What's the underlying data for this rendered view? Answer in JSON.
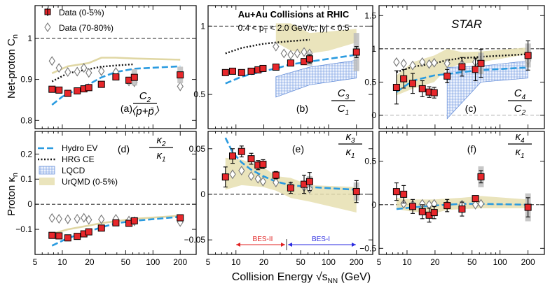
{
  "figure": {
    "xtitle_main": "Collision Energy ",
    "xtitle_sqrt": "√s",
    "xtitle_sub": "NN",
    "xtitle_unit": " (GeV)",
    "ylabel_top": "Net-proton C",
    "ylabel_top_sub": "n",
    "ylabel_bottom": "Proton κ",
    "ylabel_bottom_sub": "n",
    "header_title": "Au+Au Collisions at RHIC",
    "header_cut_a": "0.4 < p",
    "header_cut_sub": "T",
    "header_cut_b": " < 2.0 GeV/c, |y| < 0.5",
    "star_label": "STAR",
    "bes2_label": "BES-II",
    "bes1_label": "BES-I",
    "legend": {
      "data_central": "Data (0-5%)",
      "data_peripheral": "Data (70-80%)",
      "hydro": "Hydro EV",
      "hrg": "HRG CE",
      "lqcd": "LQCD",
      "urqmd": "UrQMD (0-5%)"
    },
    "panel_tags": [
      "(a)",
      "(b)",
      "(c)",
      "(d)",
      "(e)",
      "(f)"
    ],
    "ratios": [
      {
        "num": "C",
        "num_sub": "2",
        "den": "〈p+p̄〉",
        "den_sub": ""
      },
      {
        "num": "C",
        "num_sub": "3",
        "den": "C",
        "den_sub": "1"
      },
      {
        "num": "C",
        "num_sub": "4",
        "den": "C",
        "den_sub": "2"
      },
      {
        "num": "κ",
        "num_sub": "2",
        "den": "κ",
        "den_sub": "1"
      },
      {
        "num": "κ",
        "num_sub": "3",
        "den": "κ",
        "den_sub": "1"
      },
      {
        "num": "κ",
        "num_sub": "4",
        "den": "κ",
        "den_sub": "1"
      }
    ]
  },
  "chart_data": [
    {
      "type": "scatter",
      "panel": "a",
      "xscale": "log",
      "xlim": [
        5,
        300
      ],
      "ylim": [
        0.78,
        1.08
      ],
      "yticks": [
        0.8,
        0.9,
        1
      ],
      "ytick_labels": [
        "0.8",
        "0.9",
        "1"
      ],
      "xticks": [
        5,
        10,
        20,
        50,
        100,
        200
      ],
      "xtick_labels": [
        "5",
        "10",
        "20",
        "50",
        "100",
        "200"
      ],
      "ref_line": 1,
      "series": [
        {
          "name": "Data (0-5%)",
          "x": [
            7.7,
            9.2,
            11.5,
            14.6,
            17.3,
            19.6,
            27,
            39,
            54.4,
            62.4,
            200
          ],
          "y": [
            0.876,
            0.874,
            0.866,
            0.872,
            0.877,
            0.88,
            0.888,
            0.906,
            0.898,
            0.905,
            0.911
          ],
          "err": [
            0.004,
            0.004,
            0.004,
            0.004,
            0.005,
            0.004,
            0.004,
            0.004,
            0.004,
            0.004,
            0.005
          ],
          "syst": [
            0,
            0,
            0,
            0,
            0,
            0,
            0,
            0,
            0,
            0.02,
            0.02
          ]
        },
        {
          "name": "Data (70-80%)",
          "x": [
            7.7,
            9.2,
            11.5,
            14.6,
            17.3,
            19.6,
            27,
            39,
            54.4,
            62.4,
            200
          ],
          "y": [
            0.945,
            0.928,
            0.918,
            0.919,
            0.928,
            0.916,
            0.92,
            0.918,
            0.895,
            0.893,
            0.883
          ]
        },
        {
          "name": "Hydro EV",
          "x": [
            7.7,
            10,
            14.5,
            19.6,
            27,
            39,
            62.4,
            200
          ],
          "y": [
            0.838,
            0.858,
            0.875,
            0.888,
            0.905,
            0.918,
            0.926,
            0.932
          ]
        },
        {
          "name": "HRG CE",
          "x": [
            7.7,
            11.5,
            19.6,
            27,
            39,
            62.4
          ],
          "y": [
            0.895,
            0.915,
            0.925,
            0.931,
            0.934,
            0.937
          ]
        },
        {
          "name": "UrQMD (0-5%)",
          "x": [
            7.7,
            11.5,
            19.6,
            27,
            39,
            62.4,
            200
          ],
          "y": [
            0.915,
            0.932,
            0.94,
            0.953,
            0.953,
            0.951,
            0.948
          ]
        }
      ]
    },
    {
      "type": "scatter",
      "panel": "b",
      "xscale": "log",
      "xlim": [
        5,
        300
      ],
      "ylim": [
        0.25,
        1.15
      ],
      "yticks": [
        0.5,
        1
      ],
      "ytick_labels": [
        "0.5",
        "1"
      ],
      "ref_line": 1,
      "xticks": [
        5,
        10,
        20,
        50,
        100,
        200
      ],
      "xtick_labels": [
        "5",
        "10",
        "20",
        "50",
        "100",
        "200"
      ],
      "series": [
        {
          "name": "Data (0-5%)",
          "x": [
            7.7,
            9.2,
            11.5,
            14.6,
            17.3,
            19.6,
            27,
            39,
            54.4,
            62.4,
            200
          ],
          "y": [
            0.66,
            0.67,
            0.66,
            0.67,
            0.68,
            0.69,
            0.7,
            0.73,
            0.74,
            0.76,
            0.81
          ],
          "err": [
            0.02,
            0.02,
            0.02,
            0.02,
            0.02,
            0.02,
            0.02,
            0.02,
            0.02,
            0.03,
            0.04
          ],
          "syst": [
            0,
            0,
            0,
            0,
            0,
            0,
            0,
            0,
            0,
            0.05,
            0.14
          ]
        },
        {
          "name": "Data (70-80%)",
          "x": [
            27,
            33,
            39,
            46,
            54.4,
            62.4
          ],
          "y": [
            0.85,
            0.8,
            0.79,
            0.8,
            0.81,
            0.8
          ]
        },
        {
          "name": "Hydro EV",
          "x": [
            7.7,
            11.5,
            19.6,
            27,
            39,
            62.4,
            200
          ],
          "y": [
            0.58,
            0.63,
            0.67,
            0.69,
            0.72,
            0.74,
            0.79
          ]
        },
        {
          "name": "HRG CE",
          "x": [
            7.7,
            11.5,
            19.6,
            27,
            39,
            62.4
          ],
          "y": [
            0.8,
            0.84,
            0.87,
            0.88,
            0.89,
            0.9
          ]
        },
        {
          "name": "UrQMD (0-5%)",
          "x": [
            27,
            39,
            54.4,
            62.4,
            100,
            200
          ],
          "y_low": [
            0.88,
            0.82,
            0.8,
            0.8,
            0.82,
            0.88
          ],
          "y_high": [
            1.02,
            1.02,
            0.97,
            0.95,
            0.96,
            0.98
          ]
        },
        {
          "name": "LQCD",
          "x": [
            27,
            62.4,
            200
          ],
          "y_low": [
            0.48,
            0.57,
            0.62
          ],
          "y_high": [
            0.63,
            0.7,
            0.75
          ]
        }
      ]
    },
    {
      "type": "scatter",
      "panel": "c",
      "xscale": "log",
      "xlim": [
        5,
        300
      ],
      "ylim": [
        -0.2,
        1.65
      ],
      "yticks": [
        0,
        0.5,
        1,
        1.5
      ],
      "ytick_labels": [
        "0",
        "0.5",
        "1",
        "1.5"
      ],
      "ref_line": 1,
      "xticks": [
        5,
        10,
        20,
        50,
        100,
        200
      ],
      "xtick_labels": [
        "5",
        "10",
        "20",
        "50",
        "100",
        "200"
      ],
      "series": [
        {
          "name": "Data (0-5%)",
          "x": [
            7.7,
            9.2,
            11.5,
            14.6,
            17.3,
            19.6,
            27,
            39,
            54.4,
            62.4,
            200
          ],
          "y": [
            0.42,
            0.55,
            0.48,
            0.4,
            0.35,
            0.34,
            0.59,
            0.73,
            0.69,
            0.78,
            0.9
          ],
          "err": [
            0.25,
            0.14,
            0.15,
            0.12,
            0.08,
            0.08,
            0.1,
            0.14,
            0.17,
            0.21,
            0.22
          ],
          "syst": [
            0,
            0,
            0,
            0,
            0,
            0,
            0,
            0,
            0,
            0.16,
            0.18
          ]
        },
        {
          "name": "Data (70-80%)",
          "x": [
            7.7,
            9.2,
            11.5,
            14.6,
            17.3,
            19.6,
            27,
            39,
            54.4,
            62.4,
            200
          ],
          "y": [
            0.8,
            0.78,
            0.75,
            0.8,
            0.77,
            0.79,
            0.78,
            0.77,
            0.8,
            0.8,
            0.82
          ]
        },
        {
          "name": "Hydro EV",
          "x": [
            7.7,
            11.5,
            19.6,
            27,
            39,
            62.4,
            200
          ],
          "y": [
            0.35,
            0.52,
            0.6,
            0.62,
            0.65,
            0.68,
            0.72
          ]
        },
        {
          "name": "HRG CE",
          "x": [
            7.7,
            11.5,
            19.6,
            27,
            39,
            62.4,
            200
          ],
          "y": [
            0.65,
            0.73,
            0.78,
            0.83,
            0.86,
            0.88,
            0.92
          ]
        },
        {
          "name": "UrQMD (0-5%)",
          "x": [
            7.7,
            11.5,
            19.6,
            27,
            39,
            62.4,
            200
          ],
          "y_low": [
            0.3,
            0.4,
            0.5,
            0.7,
            0.78,
            0.8,
            0.92
          ],
          "y_high": [
            0.6,
            0.8,
            0.9,
            1.0,
            0.95,
            0.96,
            1.02
          ]
        },
        {
          "name": "LQCD",
          "x": [
            27,
            62.4,
            200
          ],
          "y_low": [
            -0.05,
            0.5,
            0.56
          ],
          "y_high": [
            0.72,
            0.74,
            0.82
          ]
        }
      ]
    },
    {
      "type": "scatter",
      "panel": "d",
      "xscale": "log",
      "xlim": [
        5,
        300
      ],
      "ylim": [
        -0.2,
        0.29
      ],
      "yticks": [
        -0.1,
        0,
        0.1,
        0.2
      ],
      "ytick_labels": [
        "−0.1",
        "0",
        "0.1",
        "0.2"
      ],
      "ref_line": 0,
      "xticks": [
        5,
        10,
        20,
        50,
        100,
        200
      ],
      "xtick_labels": [
        "5",
        "10",
        "20",
        "50",
        "100",
        "200"
      ],
      "series": [
        {
          "name": "Data (0-5%)",
          "x": [
            7.7,
            9.2,
            11.5,
            14.6,
            17.3,
            19.6,
            27,
            39,
            54.4,
            62.4,
            200
          ],
          "y": [
            -0.124,
            -0.126,
            -0.134,
            -0.128,
            -0.118,
            -0.11,
            -0.095,
            -0.074,
            -0.076,
            -0.066,
            -0.054
          ],
          "err": [
            0.005,
            0.005,
            0.005,
            0.005,
            0.005,
            0.005,
            0.005,
            0.005,
            0.005,
            0.005,
            0.006
          ],
          "syst": [
            0,
            0,
            0,
            0,
            0,
            0,
            0,
            0,
            0,
            0,
            0
          ]
        },
        {
          "name": "Data (70-80%)",
          "x": [
            7.7,
            9.2,
            11.5,
            14.6,
            17.3,
            19.6,
            27,
            39,
            54.4,
            62.4,
            200
          ],
          "y": [
            -0.055,
            -0.058,
            -0.06,
            -0.058,
            -0.054,
            -0.062,
            -0.06,
            -0.058,
            -0.065,
            -0.068,
            -0.071
          ]
        },
        {
          "name": "Hydro EV",
          "x": [
            7.7,
            11.5,
            19.6,
            27,
            39,
            62.4,
            200
          ],
          "y": [
            -0.165,
            -0.135,
            -0.108,
            -0.092,
            -0.076,
            -0.066,
            -0.05
          ]
        },
        {
          "name": "UrQMD (0-5%)",
          "x": [
            7.7,
            11.5,
            19.6,
            27,
            39,
            62.4,
            200
          ],
          "y": [
            -0.118,
            -0.1,
            -0.085,
            -0.075,
            -0.068,
            -0.058,
            -0.046
          ]
        }
      ]
    },
    {
      "type": "scatter",
      "panel": "e",
      "xscale": "log",
      "xlim": [
        5,
        300
      ],
      "ylim": [
        -0.066,
        0.069
      ],
      "yticks": [
        -0.05,
        0,
        0.05
      ],
      "ytick_labels": [
        "−0.05",
        "0",
        "0.05"
      ],
      "ref_line": 0,
      "xticks": [
        5,
        10,
        20,
        50,
        100,
        200
      ],
      "xtick_labels": [
        "5",
        "10",
        "20",
        "50",
        "100",
        "200"
      ],
      "series": [
        {
          "name": "Data (0-5%)",
          "x": [
            7.7,
            9.2,
            11.5,
            14.6,
            17.3,
            19.6,
            27,
            39,
            54.4,
            62.4,
            200
          ],
          "y": [
            0.019,
            0.042,
            0.047,
            0.039,
            0.032,
            0.033,
            0.021,
            0.007,
            0.011,
            0.014,
            0.003
          ],
          "err": [
            0.011,
            0.008,
            0.006,
            0.006,
            0.005,
            0.005,
            0.004,
            0.006,
            0.01,
            0.01,
            0.012
          ],
          "syst": [
            0,
            0,
            0,
            0,
            0,
            0,
            0,
            0,
            0,
            0.006,
            0.01
          ]
        },
        {
          "name": "Data (70-80%)",
          "x": [
            9.2,
            11.5,
            14.6,
            17.3,
            19.6,
            27,
            39,
            54.4,
            62.4
          ],
          "y": [
            0.022,
            0.026,
            0.02,
            0.017,
            0.014,
            0.013,
            0.009,
            0.008,
            0.006
          ]
        },
        {
          "name": "Hydro EV",
          "x": [
            7.7,
            9.2,
            11.5,
            14.6,
            19.6,
            27,
            39,
            62.4,
            200
          ],
          "y": [
            0.062,
            0.046,
            0.035,
            0.027,
            0.02,
            0.014,
            0.01,
            0.008,
            0.005
          ]
        },
        {
          "name": "UrQMD (0-5%)",
          "x": [
            7.7,
            11.5,
            19.6,
            27,
            39,
            62.4,
            200
          ],
          "y_low": [
            0.005,
            0.01,
            0.008,
            0.004,
            -0.004,
            -0.008,
            -0.02
          ],
          "y_high": [
            0.04,
            0.038,
            0.03,
            0.02,
            0.018,
            0.01,
            0.008
          ]
        }
      ]
    },
    {
      "type": "scatter",
      "panel": "f",
      "xscale": "log",
      "xlim": [
        5,
        300
      ],
      "ylim": [
        -0.57,
        0.84
      ],
      "yticks": [
        -0.5,
        0,
        0.5
      ],
      "ytick_labels": [
        "−0.5",
        "0",
        "0.5"
      ],
      "ref_line": 0,
      "xticks": [
        5,
        10,
        20,
        50,
        100,
        200
      ],
      "xtick_labels": [
        "5",
        "10",
        "20",
        "50",
        "100",
        "200"
      ],
      "series": [
        {
          "name": "Data (0-5%)",
          "x": [
            7.7,
            9.2,
            11.5,
            14.6,
            17.3,
            19.6,
            27,
            39,
            54.4,
            62.4,
            200
          ],
          "y": [
            0.15,
            0.12,
            -0.02,
            -0.08,
            -0.12,
            -0.09,
            -0.01,
            -0.05,
            0.07,
            0.32,
            -0.03
          ],
          "err": [
            0.1,
            0.1,
            0.08,
            0.08,
            0.08,
            0.07,
            0.07,
            0.08,
            0.03,
            0.07,
            0.11
          ],
          "syst": [
            0,
            0,
            0,
            0,
            0,
            0,
            0,
            0,
            0,
            0.12,
            0.16
          ]
        },
        {
          "name": "Data (70-80%)",
          "x": [
            9.2,
            11.5,
            14.6,
            17.3,
            19.6,
            27,
            39,
            54.4,
            62.4
          ],
          "y": [
            0.01,
            0.0,
            0.01,
            0.0,
            0.01,
            0.0,
            0.0,
            0.0,
            0.01
          ]
        },
        {
          "name": "Hydro EV",
          "x": [
            7.7,
            11.5,
            19.6,
            27,
            39,
            62.4,
            200
          ],
          "y": [
            -0.05,
            -0.03,
            -0.01,
            0.0,
            0.01,
            0.01,
            0.0
          ]
        },
        {
          "name": "UrQMD (0-5%)",
          "x": [
            7.7,
            11.5,
            19.6,
            27,
            39,
            62.4,
            200
          ],
          "y_low": [
            -0.05,
            -0.08,
            -0.1,
            -0.06,
            -0.05,
            -0.04,
            -0.04
          ],
          "y_high": [
            0.08,
            0.06,
            0.06,
            0.07,
            0.08,
            0.1,
            0.06
          ]
        }
      ]
    }
  ]
}
